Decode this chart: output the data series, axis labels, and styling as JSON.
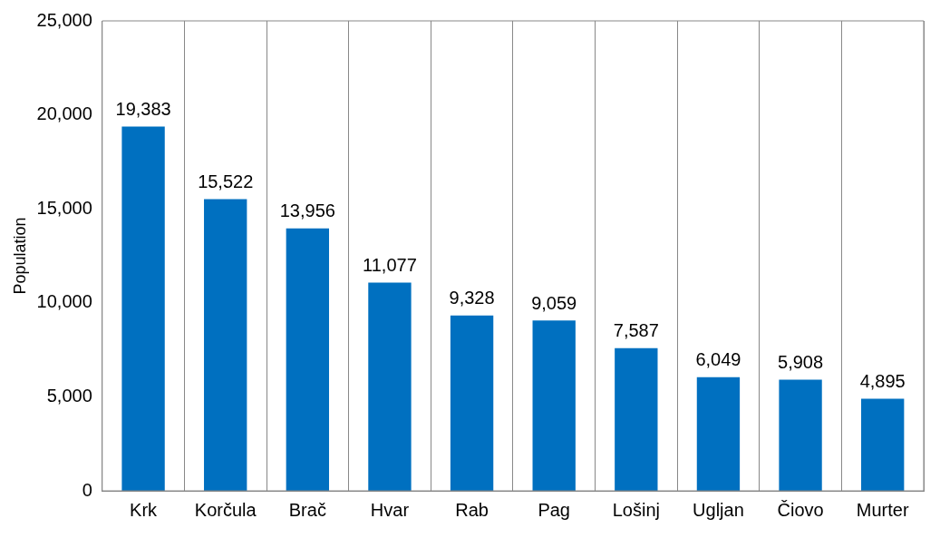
{
  "chart_data": {
    "type": "bar",
    "ylabel": "Population",
    "categories": [
      "Krk",
      "Korčula",
      "Brač",
      "Hvar",
      "Rab",
      "Pag",
      "Lošinj",
      "Ugljan",
      "Čiovo",
      "Murter"
    ],
    "values": [
      19383,
      15522,
      13956,
      11077,
      9328,
      9059,
      7587,
      6049,
      5908,
      4895
    ],
    "value_labels": [
      "19,383",
      "15,522",
      "13,956",
      "11,077",
      "9,328",
      "9,059",
      "7,587",
      "6,049",
      "5,908",
      "4,895"
    ],
    "color": "#0070c0",
    "ylim": [
      0,
      25000
    ],
    "yticks": [
      0,
      {
        "value": 5000,
        "label": "5,000"
      },
      {
        "value": 10000,
        "label": "10,000"
      },
      {
        "value": 15000,
        "label": "15,000"
      },
      {
        "value": 20000,
        "label": "20,000"
      },
      {
        "value": 25000,
        "label": "25,000"
      }
    ],
    "grid": "x",
    "legend": false
  }
}
